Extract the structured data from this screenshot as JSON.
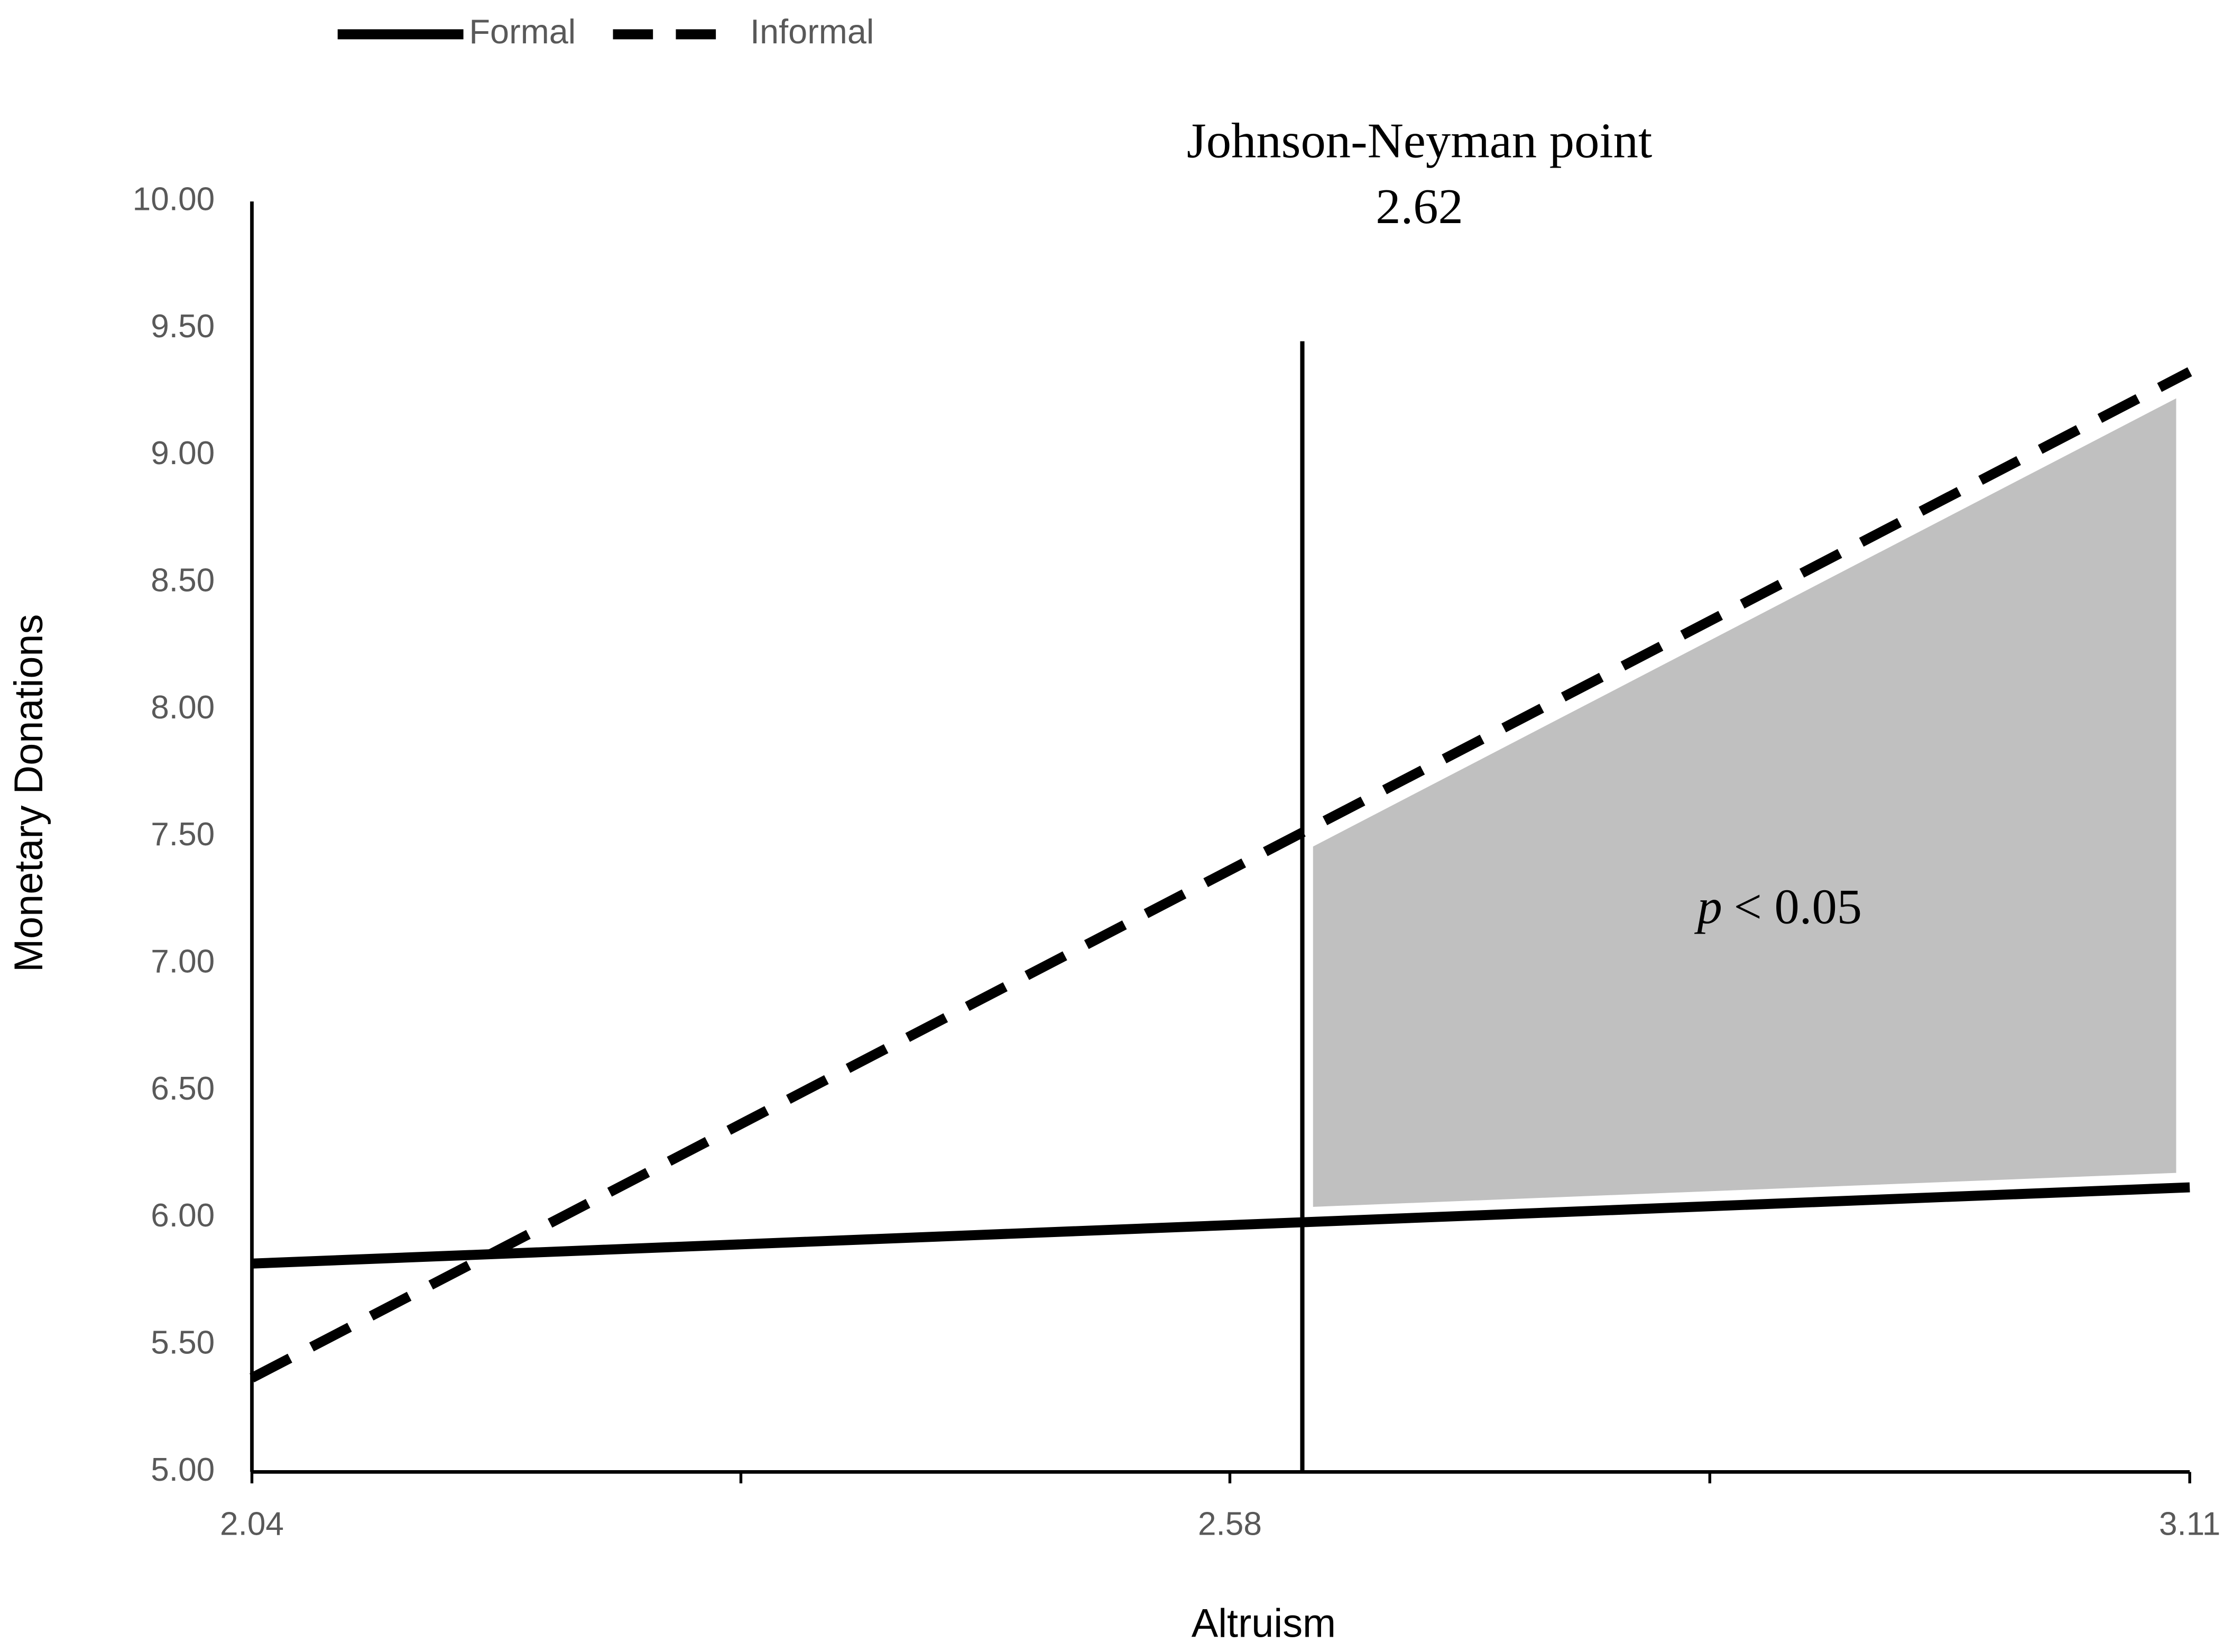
{
  "chart_data": {
    "type": "line",
    "x_label": "Altruism",
    "y_label": "Monetary Donations",
    "x": [
      2.04,
      3.11
    ],
    "series": [
      {
        "name": "Formal",
        "color": "#000000",
        "style": "solid",
        "values": [
          5.82,
          6.12
        ]
      },
      {
        "name": "Informal",
        "color": "#000000",
        "style": "dashed",
        "values": [
          5.37,
          9.33
        ]
      }
    ],
    "xlim": [
      2.04,
      3.11
    ],
    "xticks": [
      2.04,
      2.58,
      3.11
    ],
    "ylim": [
      5,
      10
    ],
    "yticks": [
      {
        "value": 5,
        "label": "5.00"
      },
      {
        "value": 5.5,
        "label": "5.50"
      },
      {
        "value": 6,
        "label": "6.00"
      },
      {
        "value": 6.5,
        "label": "6.50"
      },
      {
        "value": 7,
        "label": "7.00"
      },
      {
        "value": 7.5,
        "label": "7.50"
      },
      {
        "value": 8,
        "label": "8.00"
      },
      {
        "value": 8.5,
        "label": "8.50"
      },
      {
        "value": 9,
        "label": "9.00"
      },
      {
        "value": 9.5,
        "label": "9.50"
      },
      {
        "value": 10,
        "label": "10.00"
      }
    ],
    "jn_point": {
      "label": "Johnson-Neyman point",
      "value": 2.62
    },
    "region_label": {
      "symbol": "p",
      "text": "< 0.05"
    },
    "region_color": "#c0c0c0",
    "legend": "top-left",
    "grid": false
  }
}
